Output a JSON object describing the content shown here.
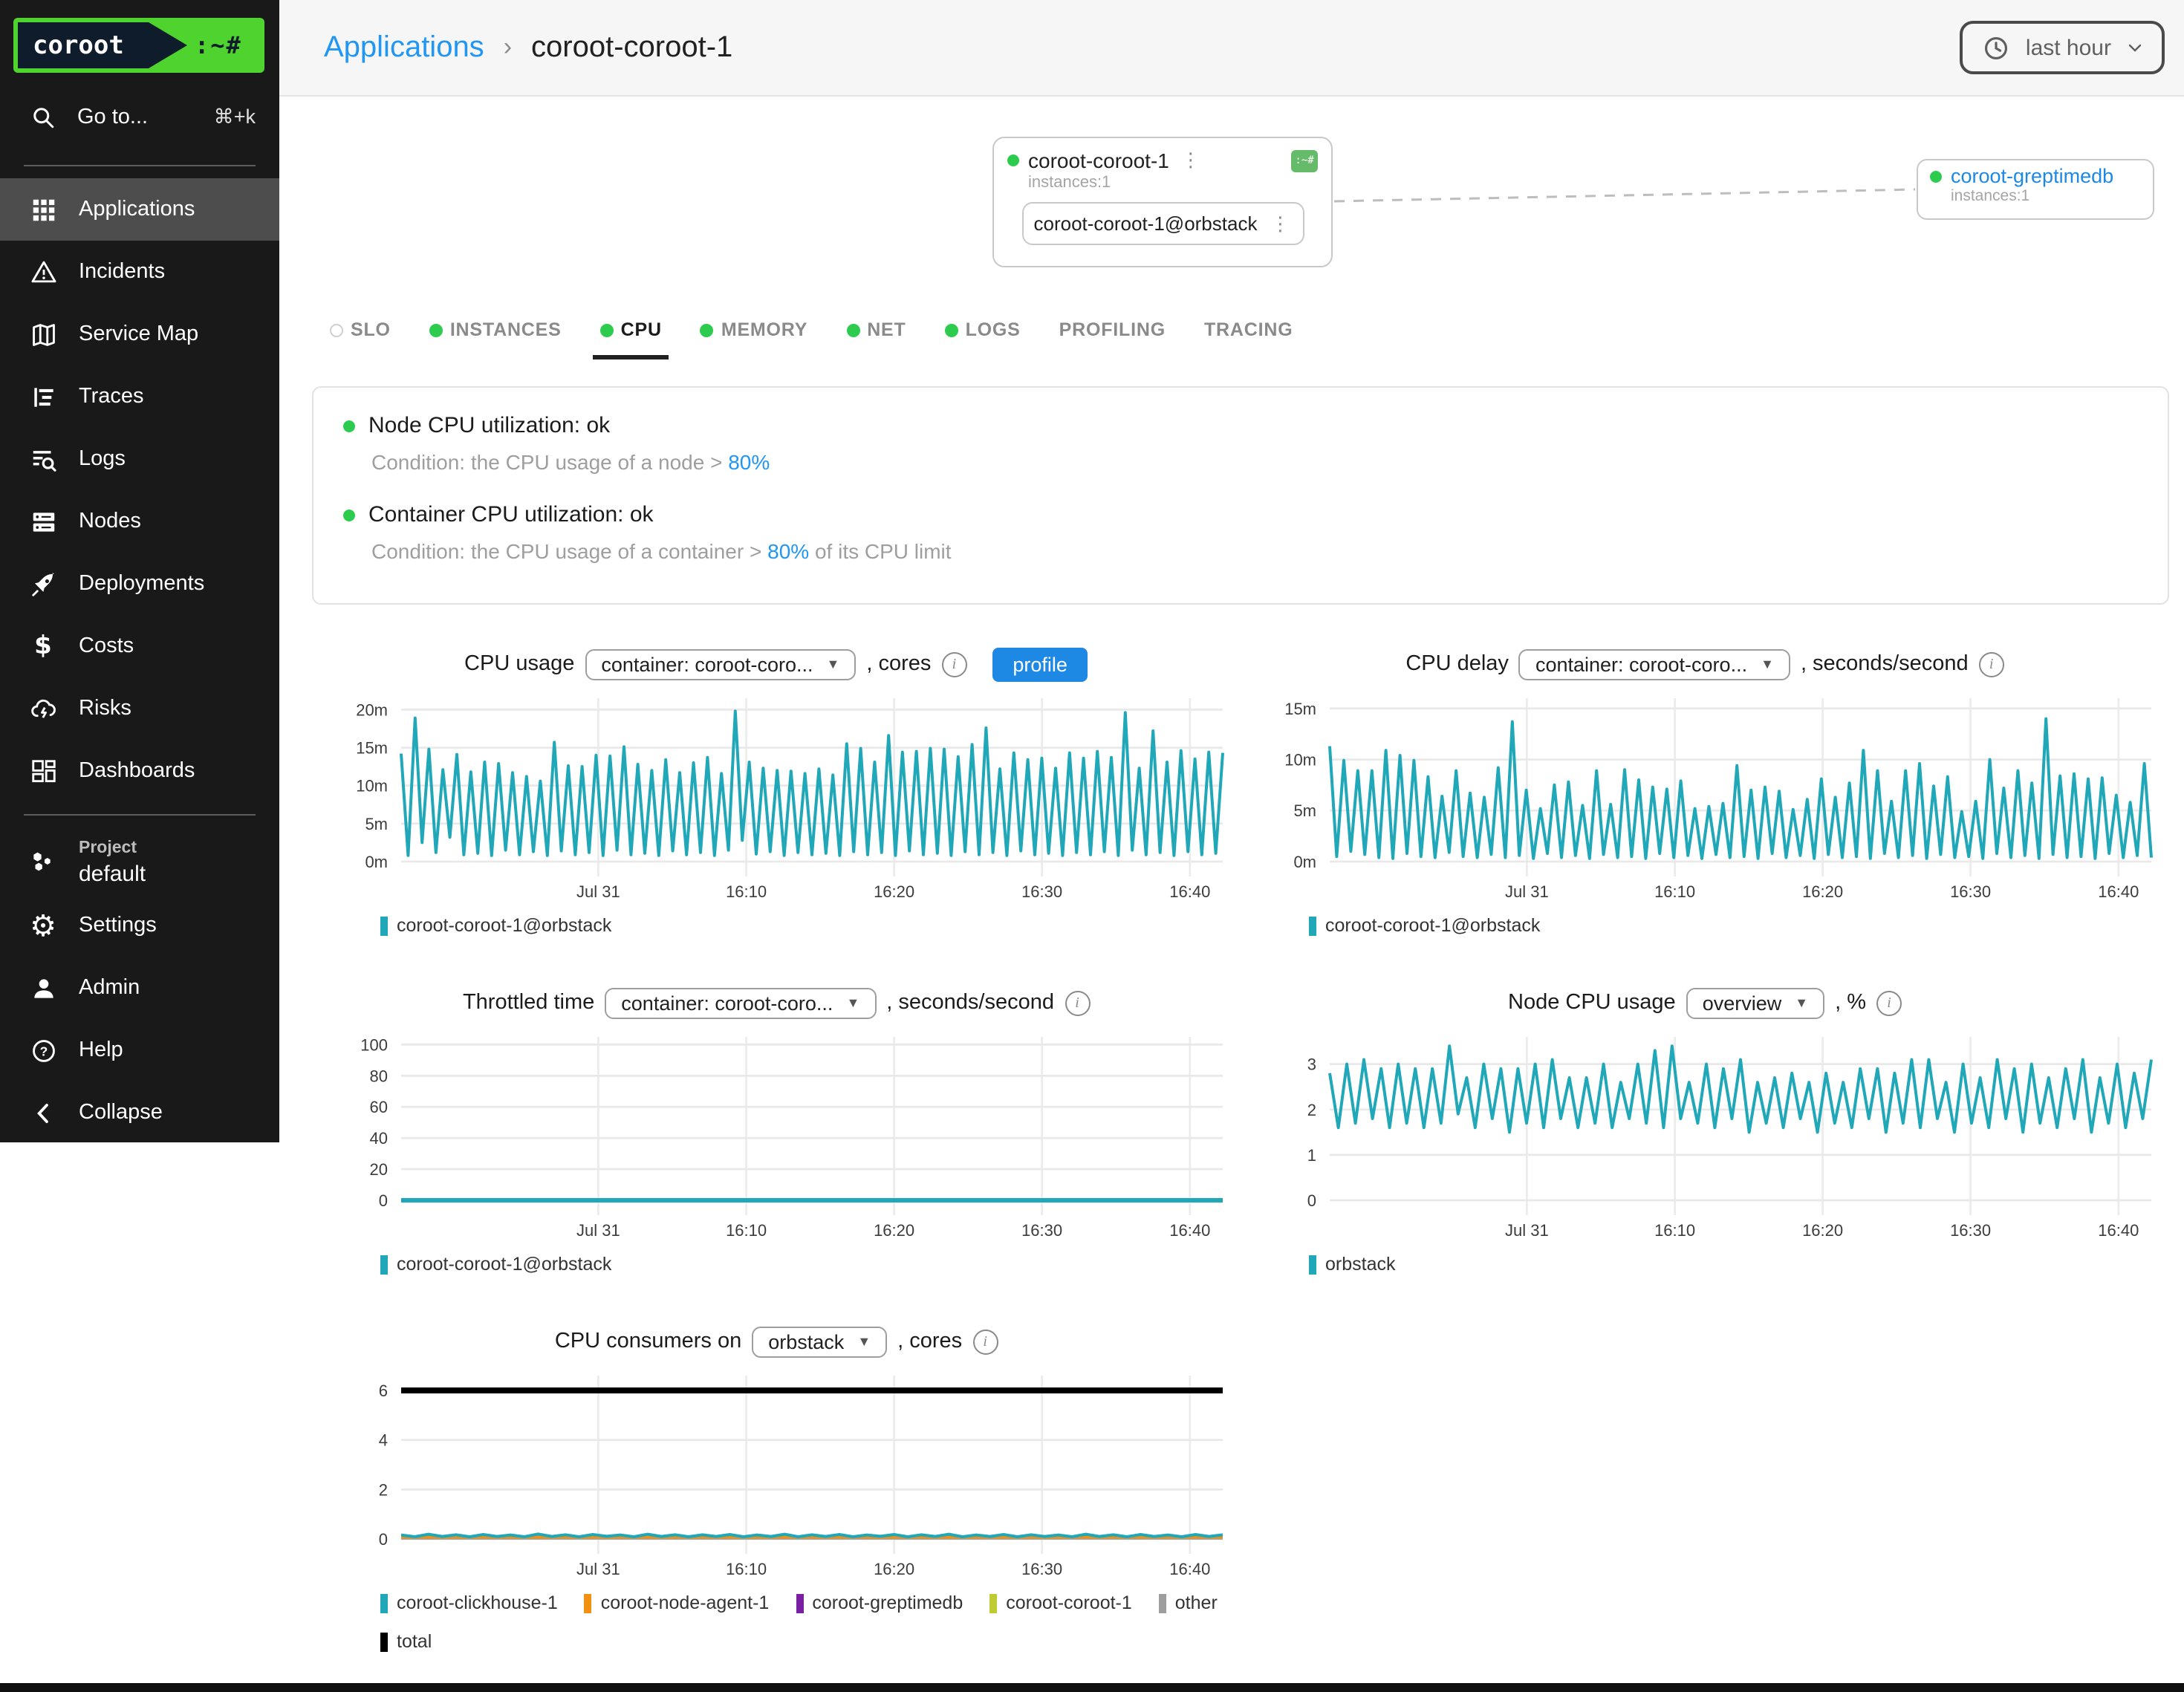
{
  "colors": {
    "accent_teal": "#20a8b9",
    "link_blue": "#2196f3",
    "button_blue": "#1e88e5",
    "status_green": "#2ecc4e",
    "logo_green": "#4ed32f",
    "logo_navy": "#0e1c2b",
    "badge_green": "#66bb6a",
    "orange": "#f29111",
    "purple": "#7b1fa2",
    "yellow_green": "#c0ca33",
    "gray": "#9e9e9e",
    "black": "#000000"
  },
  "sidebar": {
    "logo": {
      "text": "coroot",
      "suffix": ":~#"
    },
    "search": {
      "label": "Go to...",
      "shortcut": "⌘+k"
    },
    "items": [
      {
        "label": "Applications",
        "icon": "apps-grid",
        "active": true
      },
      {
        "label": "Incidents",
        "icon": "warning-triangle"
      },
      {
        "label": "Service Map",
        "icon": "map"
      },
      {
        "label": "Traces",
        "icon": "traces"
      },
      {
        "label": "Logs",
        "icon": "logs-search"
      },
      {
        "label": "Nodes",
        "icon": "server-stack"
      },
      {
        "label": "Deployments",
        "icon": "rocket"
      },
      {
        "label": "Costs",
        "icon": "dollar"
      },
      {
        "label": "Risks",
        "icon": "cloud-bolt"
      },
      {
        "label": "Dashboards",
        "icon": "dashboard-tiles"
      }
    ],
    "project": {
      "label": "Project",
      "value": "default",
      "icon": "hexagons"
    },
    "footer": [
      {
        "label": "Settings",
        "icon": "gear"
      },
      {
        "label": "Admin",
        "icon": "person"
      },
      {
        "label": "Help",
        "icon": "help-circle"
      },
      {
        "label": "Collapse",
        "icon": "chevron-left"
      }
    ]
  },
  "header": {
    "breadcrumb": {
      "app": "Applications",
      "separator": "›",
      "page": "coroot-coroot-1"
    },
    "time_picker": "last hour"
  },
  "map": {
    "app_card": {
      "title": "coroot-coroot-1",
      "instances": "instances:1",
      "instance": "coroot-coroot-1@orbstack",
      "badge": ":~#",
      "kebab": "⋮"
    },
    "db_card": {
      "title": "coroot-greptimedb",
      "instances": "instances:1"
    }
  },
  "tabs": [
    {
      "label": "SLO",
      "dot": "hollow"
    },
    {
      "label": "INSTANCES",
      "dot": "green"
    },
    {
      "label": "CPU",
      "dot": "green",
      "active": true
    },
    {
      "label": "MEMORY",
      "dot": "green"
    },
    {
      "label": "NET",
      "dot": "green"
    },
    {
      "label": "LOGS",
      "dot": "green"
    },
    {
      "label": "PROFILING",
      "dot": "none"
    },
    {
      "label": "TRACING",
      "dot": "none"
    }
  ],
  "status_panel": {
    "checks": [
      {
        "title": "Node CPU utilization: ok",
        "condition_prefix": "Condition: the CPU usage of a node > ",
        "threshold": "80%",
        "condition_suffix": ""
      },
      {
        "title": "Container CPU utilization: ok",
        "condition_prefix": "Condition: the CPU usage of a container > ",
        "threshold": "80%",
        "condition_suffix": " of its CPU limit"
      }
    ]
  },
  "chart_data": [
    {
      "id": "cpu-usage",
      "type": "line",
      "title": "CPU usage",
      "selector": "container: coroot-coro...",
      "unit_suffix": ", cores",
      "profile_button": "profile",
      "ylim": [
        0,
        21.5
      ],
      "yticks": [
        {
          "v": 0,
          "label": "0m"
        },
        {
          "v": 5,
          "label": "5m"
        },
        {
          "v": 10,
          "label": "10m"
        },
        {
          "v": 15,
          "label": "15m"
        },
        {
          "v": 20,
          "label": "20m"
        }
      ],
      "xticks": [
        {
          "f": 0.24,
          "label": "Jul 31"
        },
        {
          "f": 0.42,
          "label": "16:10"
        },
        {
          "f": 0.6,
          "label": "16:20"
        },
        {
          "f": 0.78,
          "label": "16:30"
        },
        {
          "f": 0.96,
          "label": "16:40"
        }
      ],
      "series": [
        {
          "name": "coroot-coroot-1@orbstack",
          "color": "#20a8b9",
          "width": 2,
          "values": [
            14.2,
            0.8,
            18.9,
            2.5,
            14.8,
            1.2,
            12.1,
            3.2,
            14.1,
            0.9,
            11.8,
            1.1,
            13.1,
            0.8,
            12.9,
            1.5,
            11.7,
            0.9,
            11.2,
            1.3,
            10.6,
            0.8,
            15.7,
            1.4,
            12.6,
            0.9,
            12.5,
            1.2,
            14.0,
            0.8,
            13.9,
            1.5,
            15.1,
            0.9,
            12.8,
            1.1,
            12.0,
            0.8,
            13.4,
            1.4,
            11.7,
            0.9,
            13.0,
            1.2,
            13.7,
            0.8,
            11.6,
            1.5,
            19.8,
            2.8,
            13.1,
            1.0,
            12.3,
            1.3,
            12.0,
            0.8,
            11.9,
            1.2,
            11.6,
            0.9,
            12.2,
            1.1,
            11.4,
            0.8,
            15.5,
            1.3,
            14.9,
            0.9,
            13.1,
            1.2,
            16.6,
            0.8,
            14.4,
            1.4,
            14.5,
            0.9,
            14.9,
            1.1,
            14.8,
            0.8,
            13.8,
            1.3,
            15.4,
            0.9,
            17.6,
            1.2,
            12.2,
            0.8,
            14.3,
            1.4,
            13.4,
            0.9,
            13.6,
            1.1,
            12.3,
            0.8,
            14.3,
            1.2,
            13.6,
            0.9,
            14.5,
            1.3,
            13.7,
            0.8,
            19.6,
            1.5,
            12.3,
            0.9,
            17.2,
            1.2,
            13.1,
            0.8,
            14.6,
            1.3,
            13.5,
            0.9,
            14.4,
            1.1,
            14.3
          ]
        }
      ],
      "legend": [
        {
          "label": "coroot-coroot-1@orbstack",
          "color": "#20a8b9"
        }
      ]
    },
    {
      "id": "cpu-delay",
      "type": "line",
      "title": "CPU delay",
      "selector": "container: coroot-coro...",
      "unit_suffix": ", seconds/second",
      "profile_button": null,
      "ylim": [
        0,
        16
      ],
      "yticks": [
        {
          "v": 0,
          "label": "0m"
        },
        {
          "v": 5,
          "label": "5m"
        },
        {
          "v": 10,
          "label": "10m"
        },
        {
          "v": 15,
          "label": "15m"
        }
      ],
      "xticks": [
        {
          "f": 0.24,
          "label": "Jul 31"
        },
        {
          "f": 0.42,
          "label": "16:10"
        },
        {
          "f": 0.6,
          "label": "16:20"
        },
        {
          "f": 0.78,
          "label": "16:30"
        },
        {
          "f": 0.96,
          "label": "16:40"
        }
      ],
      "series": [
        {
          "name": "coroot-coroot-1@orbstack",
          "color": "#20a8b9",
          "width": 2,
          "values": [
            11.3,
            0.5,
            9.9,
            1.0,
            8.9,
            0.7,
            8.9,
            0.4,
            10.9,
            0.3,
            10.4,
            0.8,
            9.9,
            0.5,
            8.3,
            0.4,
            6.4,
            0.9,
            8.9,
            0.5,
            6.7,
            0.4,
            6.3,
            0.7,
            9.2,
            0.4,
            13.7,
            0.6,
            7.0,
            0.3,
            5.2,
            0.8,
            7.5,
            0.4,
            7.8,
            0.6,
            5.5,
            0.3,
            8.9,
            0.7,
            5.6,
            0.4,
            9.0,
            0.5,
            8.0,
            0.3,
            7.3,
            0.8,
            7.1,
            0.4,
            7.9,
            0.6,
            5.2,
            0.3,
            5.4,
            0.7,
            5.7,
            0.4,
            9.4,
            0.5,
            7.0,
            0.3,
            7.3,
            0.8,
            6.9,
            0.4,
            5.1,
            0.6,
            6.1,
            0.3,
            8.1,
            0.7,
            6.3,
            0.4,
            7.7,
            0.5,
            10.9,
            0.3,
            8.9,
            0.8,
            5.9,
            0.4,
            8.9,
            0.6,
            9.6,
            0.3,
            7.4,
            0.7,
            8.3,
            0.4,
            4.9,
            0.5,
            5.9,
            0.3,
            10.0,
            0.8,
            7.2,
            0.4,
            8.9,
            0.6,
            7.7,
            0.3,
            14.0,
            0.7,
            8.4,
            0.4,
            8.6,
            0.5,
            8.1,
            0.3,
            8.2,
            0.8,
            6.5,
            0.4,
            5.8,
            0.6,
            9.6,
            0.4
          ]
        }
      ],
      "legend": [
        {
          "label": "coroot-coroot-1@orbstack",
          "color": "#20a8b9"
        }
      ]
    },
    {
      "id": "throttled-time",
      "type": "line",
      "title": "Throttled time",
      "selector": "container: coroot-coro...",
      "unit_suffix": ", seconds/second",
      "profile_button": null,
      "ylim": [
        0,
        105
      ],
      "yticks": [
        {
          "v": 0,
          "label": "0"
        },
        {
          "v": 20,
          "label": "20"
        },
        {
          "v": 40,
          "label": "40"
        },
        {
          "v": 60,
          "label": "60"
        },
        {
          "v": 80,
          "label": "80"
        },
        {
          "v": 100,
          "label": "100"
        }
      ],
      "xticks": [
        {
          "f": 0.24,
          "label": "Jul 31"
        },
        {
          "f": 0.42,
          "label": "16:10"
        },
        {
          "f": 0.6,
          "label": "16:20"
        },
        {
          "f": 0.78,
          "label": "16:30"
        },
        {
          "f": 0.96,
          "label": "16:40"
        }
      ],
      "series": [
        {
          "name": "coroot-coroot-1@orbstack",
          "color": "#20a8b9",
          "width": 3,
          "values": [
            0,
            0
          ]
        }
      ],
      "legend": [
        {
          "label": "coroot-coroot-1@orbstack",
          "color": "#20a8b9"
        }
      ]
    },
    {
      "id": "node-cpu-usage",
      "type": "line",
      "title": "Node CPU usage",
      "selector": "overview",
      "unit_suffix": ", %",
      "profile_button": null,
      "ylim": [
        0,
        3.6
      ],
      "yticks": [
        {
          "v": 0,
          "label": "0"
        },
        {
          "v": 1,
          "label": "1"
        },
        {
          "v": 2,
          "label": "2"
        },
        {
          "v": 3,
          "label": "3"
        }
      ],
      "xticks": [
        {
          "f": 0.24,
          "label": "Jul 31"
        },
        {
          "f": 0.42,
          "label": "16:10"
        },
        {
          "f": 0.6,
          "label": "16:20"
        },
        {
          "f": 0.78,
          "label": "16:30"
        },
        {
          "f": 0.96,
          "label": "16:40"
        }
      ],
      "series": [
        {
          "name": "orbstack",
          "color": "#20a8b9",
          "width": 2,
          "values": [
            2.8,
            1.6,
            3.0,
            1.7,
            3.1,
            1.8,
            2.9,
            1.6,
            3.0,
            1.7,
            2.9,
            1.6,
            2.9,
            1.7,
            3.4,
            1.9,
            2.7,
            1.6,
            3.0,
            1.8,
            2.9,
            1.5,
            2.9,
            1.7,
            3.0,
            1.6,
            3.1,
            1.8,
            2.7,
            1.6,
            2.7,
            1.7,
            3.0,
            1.6,
            2.6,
            1.8,
            3.0,
            1.7,
            3.3,
            1.6,
            3.4,
            1.8,
            2.6,
            1.7,
            3.0,
            1.6,
            2.9,
            1.8,
            3.1,
            1.5,
            2.6,
            1.7,
            2.7,
            1.6,
            2.8,
            1.8,
            2.6,
            1.5,
            2.8,
            1.7,
            2.6,
            1.6,
            2.9,
            1.8,
            2.9,
            1.5,
            2.8,
            1.7,
            3.1,
            1.6,
            3.1,
            1.8,
            2.6,
            1.5,
            3.0,
            1.7,
            2.7,
            1.6,
            3.1,
            1.8,
            2.9,
            1.5,
            3.0,
            1.7,
            2.7,
            1.6,
            2.9,
            1.8,
            3.1,
            1.5,
            2.7,
            1.7,
            3.0,
            1.6,
            2.8,
            1.8,
            3.1
          ]
        }
      ],
      "legend": [
        {
          "label": "orbstack",
          "color": "#20a8b9"
        }
      ]
    },
    {
      "id": "cpu-consumers",
      "type": "line",
      "title": "CPU consumers on",
      "selector": "orbstack",
      "unit_suffix": ", cores",
      "profile_button": null,
      "ylim": [
        0,
        6.6
      ],
      "yticks": [
        {
          "v": 0,
          "label": "0"
        },
        {
          "v": 2,
          "label": "2"
        },
        {
          "v": 4,
          "label": "4"
        },
        {
          "v": 6,
          "label": "6"
        }
      ],
      "xticks": [
        {
          "f": 0.24,
          "label": "Jul 31"
        },
        {
          "f": 0.42,
          "label": "16:10"
        },
        {
          "f": 0.6,
          "label": "16:20"
        },
        {
          "f": 0.78,
          "label": "16:30"
        },
        {
          "f": 0.96,
          "label": "16:40"
        }
      ],
      "series": [
        {
          "name": "total",
          "color": "#000000",
          "width": 4,
          "values": [
            6,
            6
          ]
        },
        {
          "name": "coroot-coroot-1",
          "color": "#c0ca33",
          "width": 1.5,
          "values": [
            0.05,
            0.05
          ]
        },
        {
          "name": "coroot-greptimedb",
          "color": "#7b1fa2",
          "width": 1.5,
          "values": [
            0.03,
            0.03
          ]
        },
        {
          "name": "other",
          "color": "#9e9e9e",
          "width": 1.5,
          "values": [
            0.02,
            0.02
          ]
        },
        {
          "name": "coroot-node-agent-1",
          "color": "#f29111",
          "width": 2,
          "values": [
            0.08,
            0.08
          ]
        },
        {
          "name": "coroot-clickhouse-1",
          "color": "#20a8b9",
          "width": 2,
          "values": [
            0.16,
            0.09,
            0.19,
            0.1,
            0.17,
            0.09,
            0.18,
            0.1,
            0.16,
            0.09,
            0.2,
            0.1,
            0.17,
            0.09,
            0.18,
            0.11,
            0.16,
            0.09,
            0.19,
            0.1,
            0.17,
            0.09,
            0.17,
            0.1,
            0.18,
            0.09,
            0.16,
            0.1,
            0.19,
            0.09,
            0.17,
            0.1,
            0.18,
            0.09,
            0.16,
            0.11,
            0.18,
            0.09,
            0.17,
            0.1,
            0.19,
            0.09,
            0.16,
            0.1,
            0.18,
            0.09,
            0.17,
            0.1,
            0.16,
            0.09,
            0.19,
            0.1,
            0.17,
            0.09,
            0.18,
            0.1,
            0.16,
            0.09,
            0.18,
            0.1,
            0.17
          ]
        }
      ],
      "legend": [
        {
          "label": "coroot-clickhouse-1",
          "color": "#20a8b9"
        },
        {
          "label": "coroot-node-agent-1",
          "color": "#f29111"
        },
        {
          "label": "coroot-greptimedb",
          "color": "#7b1fa2"
        },
        {
          "label": "coroot-coroot-1",
          "color": "#c0ca33"
        },
        {
          "label": "other",
          "color": "#9e9e9e"
        },
        {
          "label": "total",
          "color": "#000000",
          "break": true
        }
      ]
    }
  ]
}
